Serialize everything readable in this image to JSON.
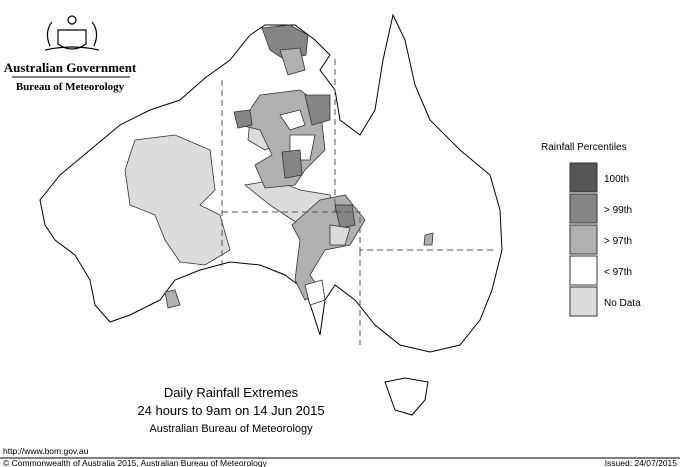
{
  "header": {
    "government": "Australian Government",
    "bureau": "Bureau of Meteorology"
  },
  "legend": {
    "title": "Rainfall Percentiles",
    "items": [
      {
        "label": "100th",
        "color": "#555555"
      },
      {
        "label": "> 99th",
        "color": "#858585"
      },
      {
        "label": "> 97th",
        "color": "#b0b0b0"
      },
      {
        "label": "< 97th",
        "color": "#ffffff"
      },
      {
        "label": "No Data",
        "color": "#dcdcdc"
      }
    ]
  },
  "title": {
    "line1": "Daily Rainfall Extremes",
    "line2": "24 hours to 9am on 14 Jun 2015",
    "line3": "Australian Bureau of Meteorology"
  },
  "footer": {
    "url": "http://www.bom.gov.au",
    "copyright": "© Commonwealth of Australia 2015, Australian Bureau of Meteorology",
    "issued": "Issued: 24/07/2015"
  }
}
